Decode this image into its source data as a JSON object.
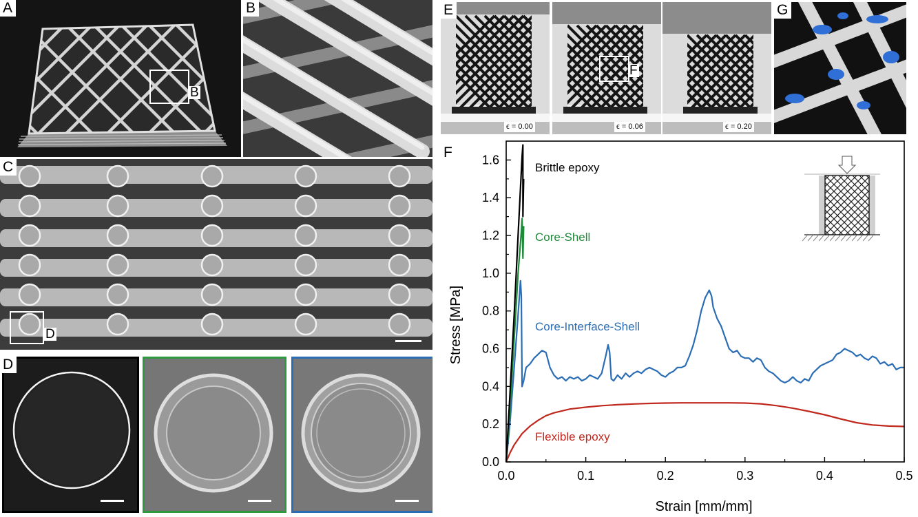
{
  "panels": {
    "A": {
      "label": "A",
      "box_label": "B"
    },
    "B": {
      "label": "B"
    },
    "C": {
      "label": "C",
      "box_label": "D"
    },
    "D": {
      "label": "D"
    },
    "E": {
      "label": "E",
      "box_label": "F",
      "strains": [
        "ϵ = 0.00",
        "ϵ = 0.06",
        "ϵ = 0.20"
      ]
    },
    "F": {
      "label": "F"
    },
    "G": {
      "label": "G"
    }
  },
  "colors": {
    "brittle": "#000000",
    "core_shell": "#1f8a3a",
    "core_interface_shell": "#2a6db5",
    "flexible": "#c0281e"
  },
  "chart_data": {
    "type": "line",
    "xlabel": "Strain [mm/mm]",
    "ylabel": "Stress [MPa]",
    "xlim": [
      0,
      0.5
    ],
    "ylim": [
      0,
      1.7
    ],
    "xticks": [
      "0.0",
      "0.1",
      "0.2",
      "0.3",
      "0.4",
      "0.5"
    ],
    "yticks": [
      "0.0",
      "0.2",
      "0.4",
      "0.6",
      "0.8",
      "1.0",
      "1.2",
      "1.4",
      "1.6"
    ],
    "legend_position": "inline labels",
    "annotations": [
      "Brittle epoxy",
      "Core-Shell",
      "Core-Interface-Shell",
      "Flexible epoxy"
    ],
    "series": [
      {
        "name": "Brittle epoxy",
        "color": "#000000",
        "x": [
          0,
          0.005,
          0.01,
          0.015,
          0.02,
          0.021,
          0.021,
          0.022
        ],
        "y": [
          0,
          0.38,
          0.78,
          1.2,
          1.62,
          1.68,
          1.3,
          1.5
        ]
      },
      {
        "name": "Core-Shell",
        "color": "#1f8a3a",
        "x": [
          0,
          0.005,
          0.01,
          0.015,
          0.019,
          0.02,
          0.021,
          0.022
        ],
        "y": [
          0,
          0.3,
          0.65,
          1.0,
          1.22,
          1.29,
          1.08,
          1.25
        ]
      },
      {
        "name": "Core-Interface-Shell",
        "color": "#2a6db5",
        "x": [
          0,
          0.005,
          0.01,
          0.015,
          0.018,
          0.019,
          0.02,
          0.022,
          0.025,
          0.03,
          0.035,
          0.04,
          0.045,
          0.05,
          0.055,
          0.06,
          0.065,
          0.07,
          0.075,
          0.08,
          0.085,
          0.09,
          0.095,
          0.1,
          0.105,
          0.11,
          0.115,
          0.12,
          0.125,
          0.128,
          0.13,
          0.132,
          0.135,
          0.14,
          0.145,
          0.15,
          0.155,
          0.16,
          0.165,
          0.17,
          0.175,
          0.18,
          0.185,
          0.19,
          0.195,
          0.2,
          0.205,
          0.21,
          0.215,
          0.22,
          0.225,
          0.23,
          0.235,
          0.24,
          0.245,
          0.25,
          0.255,
          0.258,
          0.26,
          0.265,
          0.27,
          0.275,
          0.28,
          0.285,
          0.29,
          0.295,
          0.3,
          0.305,
          0.31,
          0.315,
          0.32,
          0.325,
          0.33,
          0.335,
          0.34,
          0.345,
          0.35,
          0.355,
          0.36,
          0.365,
          0.37,
          0.375,
          0.38,
          0.385,
          0.39,
          0.395,
          0.4,
          0.405,
          0.41,
          0.415,
          0.42,
          0.425,
          0.43,
          0.435,
          0.44,
          0.445,
          0.45,
          0.455,
          0.46,
          0.465,
          0.47,
          0.475,
          0.48,
          0.485,
          0.49,
          0.495,
          0.5
        ],
        "y": [
          0,
          0.22,
          0.5,
          0.78,
          0.96,
          0.88,
          0.4,
          0.43,
          0.5,
          0.52,
          0.55,
          0.57,
          0.59,
          0.58,
          0.5,
          0.46,
          0.44,
          0.45,
          0.43,
          0.45,
          0.44,
          0.45,
          0.43,
          0.44,
          0.46,
          0.45,
          0.44,
          0.47,
          0.56,
          0.62,
          0.58,
          0.44,
          0.43,
          0.46,
          0.44,
          0.47,
          0.45,
          0.47,
          0.48,
          0.47,
          0.49,
          0.5,
          0.49,
          0.48,
          0.46,
          0.45,
          0.47,
          0.48,
          0.5,
          0.5,
          0.51,
          0.56,
          0.62,
          0.7,
          0.8,
          0.87,
          0.91,
          0.88,
          0.82,
          0.76,
          0.72,
          0.66,
          0.6,
          0.58,
          0.59,
          0.56,
          0.55,
          0.55,
          0.53,
          0.55,
          0.54,
          0.5,
          0.48,
          0.47,
          0.45,
          0.43,
          0.42,
          0.43,
          0.45,
          0.43,
          0.42,
          0.44,
          0.43,
          0.47,
          0.49,
          0.51,
          0.52,
          0.53,
          0.54,
          0.57,
          0.58,
          0.6,
          0.59,
          0.58,
          0.56,
          0.57,
          0.55,
          0.54,
          0.56,
          0.55,
          0.52,
          0.53,
          0.51,
          0.52,
          0.49,
          0.5,
          0.5
        ]
      },
      {
        "name": "Flexible epoxy",
        "color": "#c0281e",
        "x": [
          0,
          0.005,
          0.01,
          0.02,
          0.03,
          0.04,
          0.05,
          0.06,
          0.08,
          0.1,
          0.12,
          0.14,
          0.16,
          0.18,
          0.2,
          0.22,
          0.24,
          0.26,
          0.28,
          0.3,
          0.32,
          0.34,
          0.36,
          0.38,
          0.4,
          0.42,
          0.44,
          0.46,
          0.48,
          0.5
        ],
        "y": [
          0,
          0.05,
          0.09,
          0.15,
          0.19,
          0.22,
          0.245,
          0.26,
          0.28,
          0.29,
          0.298,
          0.303,
          0.307,
          0.31,
          0.312,
          0.313,
          0.313,
          0.313,
          0.313,
          0.312,
          0.308,
          0.298,
          0.285,
          0.268,
          0.25,
          0.228,
          0.208,
          0.196,
          0.19,
          0.188
        ]
      }
    ]
  }
}
